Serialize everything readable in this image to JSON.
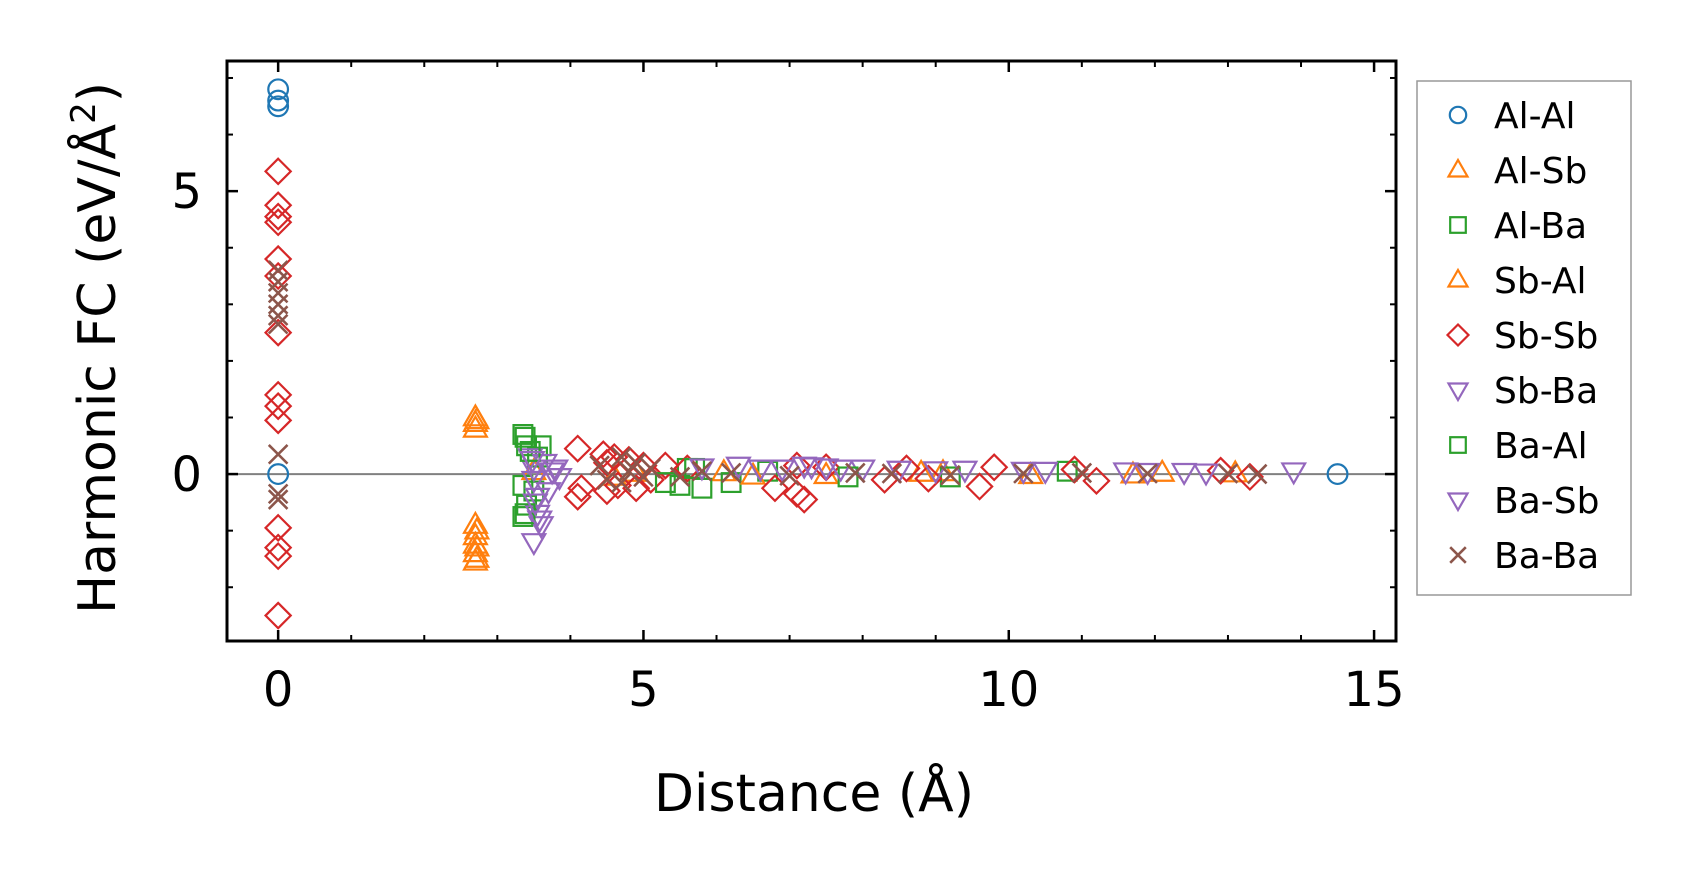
{
  "chart_data": {
    "type": "scatter",
    "title": "",
    "xlabel": "Distance (Å)",
    "ylabel_main": "Harmonic FC (eV/Å",
    "ylabel_sup": "2",
    "ylabel_close": ")",
    "xlim": [
      -0.7,
      15.3
    ],
    "ylim": [
      -2.95,
      7.3
    ],
    "xticks": [
      0,
      5,
      10,
      15
    ],
    "xtick_labels": [
      "0",
      "5",
      "10",
      "15"
    ],
    "yticks": [
      0,
      5
    ],
    "ytick_labels": [
      "0",
      "5"
    ],
    "x_minor_step": 1,
    "y_minor_step": 1,
    "zero_line": true,
    "legend_position": "outside-right",
    "series": [
      {
        "name": "Al-Al",
        "marker": "circle",
        "color": "#1f77b4",
        "points": [
          [
            0,
            6.8
          ],
          [
            0,
            6.6
          ],
          [
            0,
            6.5
          ],
          [
            0,
            0
          ],
          [
            14.5,
            0
          ]
        ]
      },
      {
        "name": "Al-Sb",
        "marker": "triangle-up",
        "color": "#ff7f0e",
        "points": [
          [
            2.7,
            1.0
          ],
          [
            2.7,
            0.9
          ],
          [
            2.7,
            0.8
          ],
          [
            2.7,
            -0.9
          ],
          [
            2.7,
            -1.1
          ],
          [
            2.7,
            -1.25
          ],
          [
            2.7,
            -1.4
          ],
          [
            2.7,
            -1.55
          ],
          [
            3.5,
            0.05
          ],
          [
            4.6,
            -0.05
          ],
          [
            6.1,
            0.03
          ],
          [
            7.5,
            -0.02
          ],
          [
            9.1,
            0.03
          ],
          [
            10.3,
            -0.02
          ],
          [
            12.1,
            0.02
          ],
          [
            13.1,
            0.01
          ]
        ]
      },
      {
        "name": "Al-Ba",
        "marker": "square",
        "color": "#2ca02c",
        "points": [
          [
            3.35,
            0.7
          ],
          [
            3.4,
            0.5
          ],
          [
            3.35,
            -0.2
          ],
          [
            3.4,
            -0.55
          ],
          [
            3.35,
            -0.75
          ],
          [
            3.6,
            0.5
          ],
          [
            3.55,
            0.3
          ],
          [
            3.5,
            -0.3
          ],
          [
            5.5,
            -0.2
          ],
          [
            5.6,
            0.1
          ],
          [
            5.8,
            -0.25
          ],
          [
            6.2,
            -0.15
          ],
          [
            6.7,
            0.05
          ],
          [
            9.2,
            -0.05
          ],
          [
            10.8,
            0.05
          ]
        ]
      },
      {
        "name": "Sb-Al",
        "marker": "triangle-up",
        "color": "#ff7f0e",
        "points": [
          [
            2.72,
            0.95
          ],
          [
            2.72,
            -1.0
          ],
          [
            2.72,
            -1.3
          ],
          [
            2.72,
            -1.5
          ],
          [
            4.9,
            0.02
          ],
          [
            6.5,
            -0.03
          ],
          [
            8.8,
            0.02
          ],
          [
            11.7,
            -0.01
          ]
        ]
      },
      {
        "name": "Sb-Sb",
        "marker": "diamond",
        "color": "#d62728",
        "points": [
          [
            0,
            5.35
          ],
          [
            0,
            4.75
          ],
          [
            0,
            4.55
          ],
          [
            0,
            4.45
          ],
          [
            0,
            3.8
          ],
          [
            0,
            3.5
          ],
          [
            0,
            2.5
          ],
          [
            0,
            1.4
          ],
          [
            0,
            1.2
          ],
          [
            0,
            0.95
          ],
          [
            0,
            -0.95
          ],
          [
            0,
            -1.3
          ],
          [
            0,
            -1.45
          ],
          [
            0,
            -2.5
          ],
          [
            4.1,
            0.45
          ],
          [
            4.1,
            -0.4
          ],
          [
            4.15,
            -0.25
          ],
          [
            4.45,
            0.35
          ],
          [
            4.5,
            0.2
          ],
          [
            4.5,
            -0.3
          ],
          [
            4.6,
            0.3
          ],
          [
            4.65,
            -0.2
          ],
          [
            4.8,
            0.25
          ],
          [
            4.9,
            -0.25
          ],
          [
            5.0,
            0.15
          ],
          [
            5.1,
            -0.1
          ],
          [
            5.3,
            0.15
          ],
          [
            5.6,
            0.1
          ],
          [
            6.8,
            -0.25
          ],
          [
            7.1,
            -0.35
          ],
          [
            7.1,
            0.15
          ],
          [
            7.2,
            -0.45
          ],
          [
            7.5,
            0.12
          ],
          [
            8.3,
            -0.1
          ],
          [
            8.6,
            0.1
          ],
          [
            8.9,
            -0.08
          ],
          [
            9.6,
            -0.22
          ],
          [
            9.8,
            0.12
          ],
          [
            10.9,
            0.08
          ],
          [
            11.2,
            -0.12
          ],
          [
            12.9,
            0.06
          ],
          [
            13.3,
            -0.05
          ]
        ]
      },
      {
        "name": "Sb-Ba",
        "marker": "triangle-down",
        "color": "#9467bd",
        "points": [
          [
            3.45,
            0.3
          ],
          [
            3.5,
            0.1
          ],
          [
            3.5,
            -0.1
          ],
          [
            3.55,
            -0.4
          ],
          [
            3.55,
            -0.7
          ],
          [
            3.5,
            -1.2
          ],
          [
            3.6,
            -0.9
          ],
          [
            3.65,
            0.2
          ],
          [
            3.7,
            -0.3
          ],
          [
            3.8,
            0.1
          ],
          [
            3.85,
            -0.05
          ],
          [
            6.3,
            0.15
          ],
          [
            6.9,
            0.1
          ],
          [
            7.2,
            0.15
          ],
          [
            7.5,
            0.12
          ],
          [
            8.0,
            0.1
          ],
          [
            9.4,
            0.08
          ],
          [
            10.2,
            0.06
          ],
          [
            11.6,
            0.05
          ],
          [
            12.4,
            0.04
          ],
          [
            13.9,
            0.05
          ]
        ]
      },
      {
        "name": "Ba-Al",
        "marker": "square",
        "color": "#2ca02c",
        "points": [
          [
            3.38,
            0.65
          ],
          [
            3.38,
            -0.7
          ],
          [
            3.45,
            0.4
          ],
          [
            5.3,
            -0.15
          ],
          [
            5.7,
            0.1
          ],
          [
            7.8,
            -0.05
          ]
        ]
      },
      {
        "name": "Ba-Sb",
        "marker": "triangle-down",
        "color": "#9467bd",
        "points": [
          [
            3.48,
            0.25
          ],
          [
            3.52,
            -0.5
          ],
          [
            3.58,
            -0.8
          ],
          [
            3.75,
            0.05
          ],
          [
            5.8,
            0.12
          ],
          [
            6.6,
            0.1
          ],
          [
            7.3,
            0.14
          ],
          [
            7.7,
            0.1
          ],
          [
            8.5,
            0.08
          ],
          [
            9.0,
            0.07
          ],
          [
            10.5,
            0.06
          ],
          [
            11.9,
            0.04
          ],
          [
            12.7,
            0.03
          ]
        ]
      },
      {
        "name": "Ba-Ba",
        "marker": "x",
        "color": "#8c564b",
        "points": [
          [
            0,
            3.6
          ],
          [
            0,
            3.4
          ],
          [
            0,
            3.2
          ],
          [
            0,
            3.0
          ],
          [
            0,
            2.8
          ],
          [
            0,
            2.65
          ],
          [
            0,
            0.35
          ],
          [
            0,
            -0.35
          ],
          [
            0,
            -0.45
          ],
          [
            4.4,
            0.15
          ],
          [
            4.5,
            -0.1
          ],
          [
            4.7,
            0.3
          ],
          [
            4.7,
            -0.15
          ],
          [
            4.8,
            0.05
          ],
          [
            4.9,
            0.2
          ],
          [
            5.0,
            -0.05
          ],
          [
            5.1,
            0.1
          ],
          [
            5.5,
            -0.05
          ],
          [
            5.8,
            0.05
          ],
          [
            6.2,
            0.02
          ],
          [
            7.0,
            -0.03
          ],
          [
            7.9,
            0.02
          ],
          [
            8.4,
            0.01
          ],
          [
            9.2,
            -0.02
          ],
          [
            10.2,
            0.01
          ],
          [
            11.0,
            0.02
          ],
          [
            11.9,
            0.01
          ],
          [
            13.0,
            0.01
          ],
          [
            13.4,
            0.0
          ]
        ]
      }
    ]
  }
}
